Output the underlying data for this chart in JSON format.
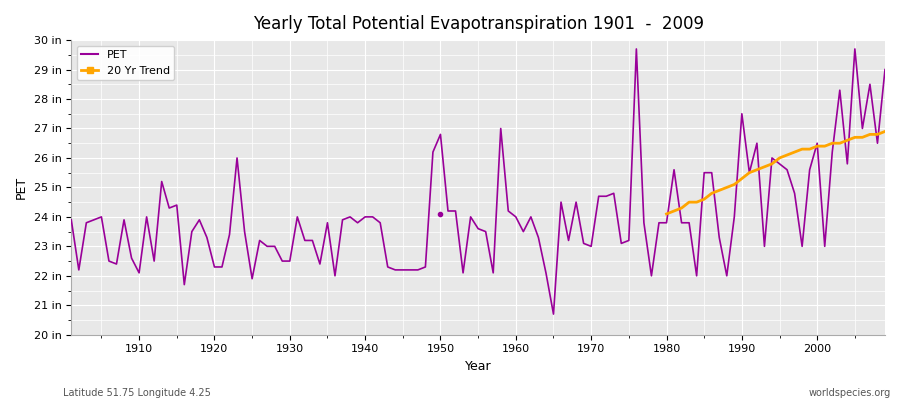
{
  "title": "Yearly Total Potential Evapotranspiration 1901  -  2009",
  "xlabel": "Year",
  "ylabel": "PET",
  "footnote_left": "Latitude 51.75 Longitude 4.25",
  "footnote_right": "worldspecies.org",
  "pet_color": "#990099",
  "trend_color": "#FFA500",
  "background_color": "#E8E8E8",
  "ylim": [
    20,
    30
  ],
  "yticks": [
    20,
    21,
    22,
    23,
    24,
    25,
    26,
    27,
    28,
    29,
    30
  ],
  "ytick_labels": [
    "20 in",
    "21 in",
    "22 in",
    "23 in",
    "24 in",
    "25 in",
    "26 in",
    "27 in",
    "28 in",
    "29 in",
    "30 in"
  ],
  "years": [
    1901,
    1902,
    1903,
    1904,
    1905,
    1906,
    1907,
    1908,
    1909,
    1910,
    1911,
    1912,
    1913,
    1914,
    1915,
    1916,
    1917,
    1918,
    1919,
    1920,
    1921,
    1922,
    1923,
    1924,
    1925,
    1926,
    1927,
    1928,
    1929,
    1930,
    1931,
    1932,
    1933,
    1934,
    1935,
    1936,
    1937,
    1938,
    1939,
    1940,
    1941,
    1942,
    1943,
    1944,
    1945,
    1946,
    1947,
    1948,
    1949,
    1950,
    1951,
    1952,
    1953,
    1954,
    1955,
    1956,
    1957,
    1958,
    1959,
    1960,
    1961,
    1962,
    1963,
    1964,
    1965,
    1966,
    1967,
    1968,
    1969,
    1970,
    1971,
    1972,
    1973,
    1974,
    1975,
    1976,
    1977,
    1978,
    1979,
    1980,
    1981,
    1982,
    1983,
    1984,
    1985,
    1986,
    1987,
    1988,
    1989,
    1990,
    1991,
    1992,
    1993,
    1994,
    1995,
    1996,
    1997,
    1998,
    1999,
    2000,
    2001,
    2002,
    2003,
    2004,
    2005,
    2006,
    2007,
    2008,
    2009
  ],
  "pet_values": [
    23.9,
    22.2,
    23.8,
    23.9,
    24.0,
    22.5,
    22.4,
    23.9,
    22.6,
    22.1,
    24.0,
    22.5,
    25.2,
    24.3,
    24.4,
    21.7,
    23.5,
    23.9,
    23.3,
    22.3,
    22.3,
    23.4,
    26.0,
    23.5,
    21.9,
    23.2,
    23.0,
    23.0,
    22.5,
    22.5,
    24.0,
    23.2,
    23.2,
    22.4,
    23.8,
    22.0,
    23.9,
    24.0,
    23.8,
    24.0,
    24.0,
    23.8,
    22.3,
    22.2,
    22.2,
    22.2,
    22.2,
    22.3,
    26.2,
    26.8,
    24.2,
    24.2,
    22.1,
    24.0,
    23.6,
    23.5,
    22.1,
    27.0,
    24.2,
    24.0,
    23.5,
    24.0,
    23.3,
    22.1,
    20.7,
    24.5,
    23.2,
    24.5,
    23.1,
    23.0,
    24.7,
    24.7,
    24.8,
    23.1,
    23.2,
    29.7,
    23.8,
    22.0,
    23.8,
    23.8,
    25.6,
    23.8,
    23.8,
    22.0,
    25.5,
    25.5,
    23.3,
    22.0,
    24.0,
    27.5,
    25.5,
    26.5,
    23.0,
    26.0,
    25.8,
    25.6,
    24.8,
    23.0,
    25.6,
    26.5,
    23.0,
    26.2,
    28.3,
    25.8,
    29.7,
    27.0,
    28.5,
    26.5,
    29.0
  ],
  "trend_years": [
    1980,
    1981,
    1982,
    1983,
    1984,
    1985,
    1986,
    1987,
    1988,
    1989,
    1990,
    1991,
    1992,
    1993,
    1994,
    1995,
    1996,
    1997,
    1998,
    1999,
    2000,
    2001,
    2002,
    2003,
    2004,
    2005,
    2006,
    2007,
    2008,
    2009
  ],
  "trend_values": [
    24.1,
    24.2,
    24.3,
    24.5,
    24.5,
    24.6,
    24.8,
    24.9,
    25.0,
    25.1,
    25.3,
    25.5,
    25.6,
    25.7,
    25.8,
    26.0,
    26.1,
    26.2,
    26.3,
    26.3,
    26.4,
    26.4,
    26.5,
    26.5,
    26.6,
    26.7,
    26.7,
    26.8,
    26.8,
    26.9
  ]
}
